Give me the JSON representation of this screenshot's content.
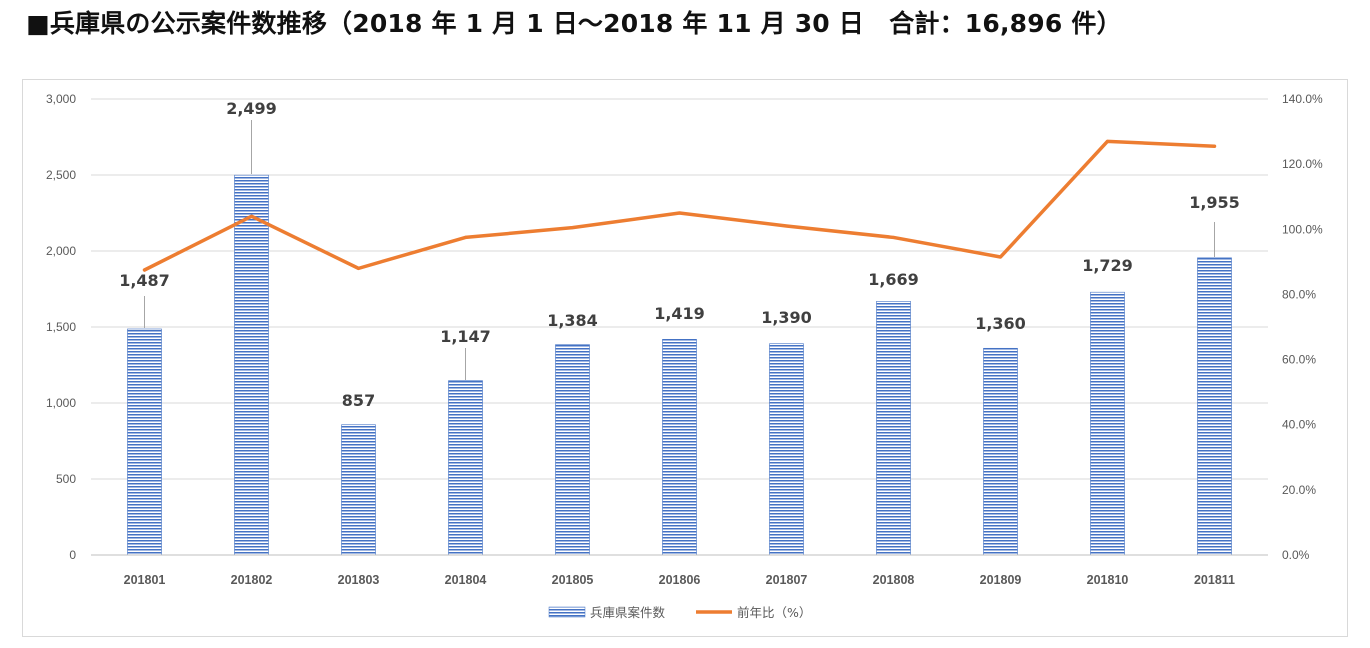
{
  "title": "■兵庫県の公示案件数推移（2018 年 1 月 1 日～2018 年 11 月 30 日　合計：16,896 件）",
  "chart_data": {
    "type": "bar",
    "categories": [
      "201801",
      "201802",
      "201803",
      "201804",
      "201805",
      "201806",
      "201807",
      "201808",
      "201809",
      "201810",
      "201811"
    ],
    "series": [
      {
        "name": "兵庫県案件数",
        "type": "bar",
        "axis": "left",
        "color": "#4472c4",
        "values": [
          1487,
          2499,
          857,
          1147,
          1384,
          1419,
          1390,
          1669,
          1360,
          1729,
          1955
        ],
        "labels": [
          "1,487",
          "2,499",
          "857",
          "1,147",
          "1,384",
          "1,419",
          "1,390",
          "1,669",
          "1,360",
          "1,729",
          "1,955"
        ]
      },
      {
        "name": "前年比（%）",
        "type": "line",
        "axis": "right",
        "color": "#ed7d31",
        "values": [
          87.5,
          104.0,
          88.0,
          97.5,
          100.5,
          105.0,
          101.0,
          97.5,
          91.5,
          127.0,
          125.5
        ]
      }
    ],
    "y_left": {
      "min": 0,
      "max": 3000,
      "ticks": [
        0,
        500,
        1000,
        1500,
        2000,
        2500,
        3000
      ],
      "tick_labels": [
        "0",
        "500",
        "1,000",
        "1,500",
        "2,000",
        "2,500",
        "3,000"
      ]
    },
    "y_right": {
      "min": 0,
      "max": 140,
      "ticks": [
        0,
        20,
        40,
        60,
        80,
        100,
        120,
        140
      ],
      "tick_labels": [
        "0.0%",
        "20.0%",
        "40.0%",
        "60.0%",
        "80.0%",
        "100.0%",
        "120.0%",
        "140.0%"
      ]
    },
    "grid": true,
    "legend": "bottom"
  }
}
